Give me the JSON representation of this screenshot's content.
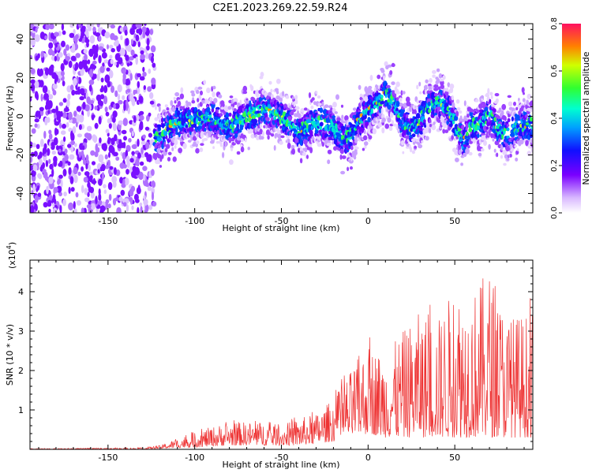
{
  "title": "C2E1.2023.269.22.59.R24",
  "chart_data": [
    {
      "type": "heatmap",
      "xlabel": "Height of straight line (km)",
      "ylabel": "Frequency (Hz)",
      "xlim": [
        -195,
        95
      ],
      "ylim": [
        -50,
        48
      ],
      "xticks": [
        -150,
        -100,
        -50,
        0,
        50
      ],
      "yticks": [
        -40,
        -20,
        0,
        20,
        40
      ],
      "colorbar": {
        "label": "Normalized spectral amplitude",
        "range": [
          0.0,
          0.8
        ],
        "ticks": [
          "0.0",
          "0.2",
          "0.4",
          "0.6",
          "0.8"
        ]
      },
      "noise_region_x": [
        -195,
        -123
      ],
      "ridge_center_frequency": {
        "x": [
          -123,
          -110,
          -100,
          -90,
          -80,
          -70,
          -60,
          -50,
          -40,
          -30,
          -20,
          -15,
          -10,
          -5,
          0,
          5,
          10,
          15,
          20,
          25,
          30,
          35,
          40,
          45,
          50,
          55,
          60,
          65,
          70,
          75,
          80,
          85,
          90,
          95
        ],
        "y": [
          -12,
          -3,
          -2,
          0,
          -6,
          0,
          4,
          0,
          -8,
          -3,
          -5,
          -12,
          -10,
          -2,
          2,
          6,
          12,
          8,
          -3,
          -6,
          -2,
          4,
          8,
          5,
          -3,
          -14,
          -4,
          -5,
          2,
          -6,
          -10,
          -6,
          -5,
          -4
        ]
      }
    },
    {
      "type": "line",
      "xlabel": "Height of straight line (km)",
      "ylabel": "SNR (10 * v/v)",
      "y_multiplier": "(x10",
      "y_multiplier_exp": "4",
      "y_multiplier_close": ")",
      "xlim": [
        -195,
        95
      ],
      "ylim": [
        0,
        4.8
      ],
      "xticks": [
        -150,
        -100,
        -50,
        0,
        50
      ],
      "yticks": [
        1,
        2,
        3,
        4
      ],
      "line_color": "#ee3333",
      "envelope": {
        "x": [
          -195,
          -130,
          -120,
          -100,
          -80,
          -60,
          -50,
          -40,
          -30,
          -20,
          -10,
          0,
          10,
          20,
          30,
          40,
          50,
          60,
          70,
          80,
          95
        ],
        "upper": [
          0.02,
          0.04,
          0.1,
          0.45,
          0.7,
          0.7,
          0.6,
          0.8,
          0.9,
          1.3,
          2.0,
          2.7,
          2.4,
          3.0,
          3.5,
          3.3,
          4.2,
          4.0,
          4.6,
          3.4,
          3.5
        ],
        "lower": [
          0.0,
          0.0,
          0.02,
          0.05,
          0.1,
          0.1,
          0.1,
          0.1,
          0.15,
          0.2,
          0.3,
          0.4,
          0.3,
          0.3,
          0.3,
          0.3,
          0.3,
          0.3,
          0.3,
          0.3,
          0.3
        ]
      }
    }
  ]
}
